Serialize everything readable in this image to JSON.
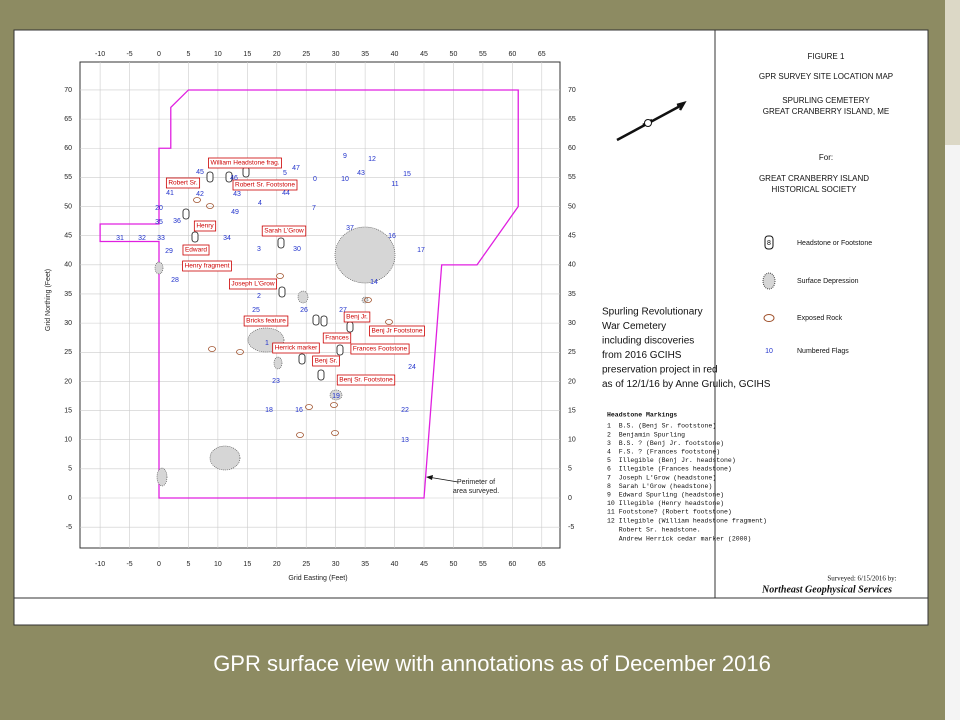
{
  "slide": {
    "caption": "GPR surface view with annotations as of December 2016"
  },
  "figure": {
    "number": "FIGURE 1",
    "title": "GPR SURVEY SITE LOCATION MAP",
    "site": [
      "SPURLING CEMETERY",
      "GREAT CRANBERRY ISLAND, ME"
    ],
    "for_label": "For:",
    "client": [
      "GREAT CRANBERRY ISLAND",
      "HISTORICAL SOCIETY"
    ],
    "legend": [
      {
        "label": "Headstone or Footstone",
        "symbol": "8"
      },
      {
        "label": "Surface Depression"
      },
      {
        "label": "Exposed Rock"
      },
      {
        "label": "Numbered Flags",
        "symbol": "10"
      }
    ],
    "surveyed": "Surveyed: 6/15/2016 by:",
    "surveyor": "Northeast Geophysical Services"
  },
  "map": {
    "x_label": "Grid Easting (Feet)",
    "y_label": "Grid Northing (Feet)",
    "xticks": [
      -10,
      -5,
      0,
      5,
      10,
      15,
      20,
      25,
      30,
      35,
      40,
      45,
      50,
      55,
      60,
      65
    ],
    "yticks": [
      -5,
      0,
      5,
      10,
      15,
      20,
      25,
      30,
      35,
      40,
      45,
      50,
      55,
      60,
      65,
      70
    ],
    "perimeter_note": [
      "Perimeter of",
      "area surveyed."
    ],
    "annotations": [
      "William Headstone frag.",
      "Robert Sr.",
      "Robert Sr. Footstone",
      "Henry",
      "Edward",
      "Sarah L'Grow",
      "Henry fragment",
      "Joseph L'Grow",
      "Bricks feature",
      "Benj Jr.",
      "Benj Jr Footstone",
      "Frances",
      "Herrick marker",
      "Frances Footstone",
      "Benj Sr.",
      "Benj Sr. Footstone"
    ],
    "flags": [
      "9",
      "12",
      "47",
      "5",
      "43",
      "15",
      "0",
      "10",
      "11",
      "45",
      "46",
      "41",
      "42",
      "43",
      "44",
      "4",
      "7",
      "20",
      "49",
      "35",
      "36",
      "37",
      "16",
      "31",
      "32",
      "33",
      "34",
      "3",
      "30",
      "29",
      "17",
      "14",
      "28",
      "2",
      "25",
      "26",
      "27",
      "1",
      "24",
      "23",
      "19",
      "18",
      "16",
      "22",
      "13"
    ]
  },
  "notes": {
    "description": [
      "Spurling Revolutionary",
      "War Cemetery",
      "including discoveries",
      "from 2016 GCIHS",
      "preservation project in red",
      "as of 12/1/16  by Anne Grulich, GCIHS"
    ],
    "markings_title": "Headstone Markings",
    "markings": [
      "1  B.S. (Benj Sr. footstone)",
      "2  Benjamin Spurling",
      "3  B.S. ? (Benj Jr. footstone)",
      "4  F.S. ? (Frances footstone)",
      "5  Illegible (Benj Jr. headstone)",
      "6  Illegible (Frances headstone)",
      "7  Joseph L'Grow (headstone)",
      "8  Sarah L'Grow (headstone)",
      "9  Edward Spurling (headstone)",
      "10 Illegible (Henry headstone)",
      "11 Footstone? (Robert footstone)",
      "12 Illegible (William headstone fragment)"
    ],
    "extra": [
      "   Robert Sr. headstone.",
      "   Andrew Herrick cedar marker (2000)"
    ]
  }
}
